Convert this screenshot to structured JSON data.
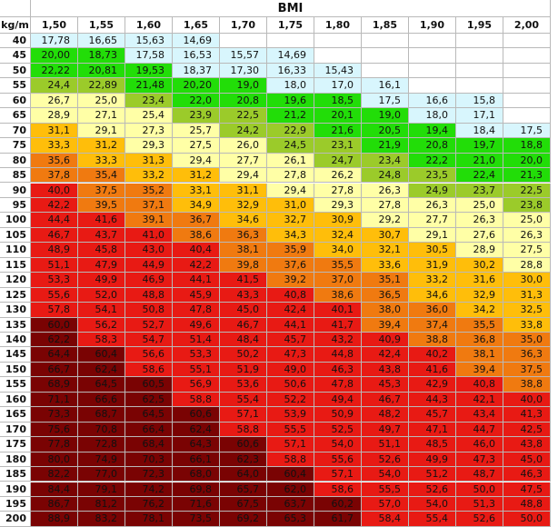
{
  "chart_data": {
    "type": "table",
    "title": "BMI",
    "corner_label": "kg/m",
    "heights": [
      "1,50",
      "1,55",
      "1,60",
      "1,65",
      "1,70",
      "1,75",
      "1,80",
      "1,85",
      "1,90",
      "1,95",
      "2,00"
    ],
    "weights": [
      "40",
      "45",
      "50",
      "55",
      "60",
      "65",
      "70",
      "75",
      "80",
      "85",
      "90",
      "95",
      "100",
      "105",
      "110",
      "115",
      "120",
      "125",
      "130",
      "135",
      "140",
      "145",
      "150",
      "155",
      "160",
      "165",
      "170",
      "175",
      "180",
      "185",
      "190",
      "195",
      "200"
    ],
    "rows": [
      [
        "17,78",
        "16,65",
        "15,63",
        "14,69",
        "",
        "",
        "",
        "",
        "",
        "",
        ""
      ],
      [
        "20,00",
        "18,73",
        "17,58",
        "16,53",
        "15,57",
        "14,69",
        "",
        "",
        "",
        "",
        ""
      ],
      [
        "22,22",
        "20,81",
        "19,53",
        "18,37",
        "17,30",
        "16,33",
        "15,43",
        "",
        "",
        "",
        ""
      ],
      [
        "24,4",
        "22,89",
        "21,48",
        "20,20",
        "19,0",
        "18,0",
        "17,0",
        "16,1",
        "",
        "",
        ""
      ],
      [
        "26,7",
        "25,0",
        "23,4",
        "22,0",
        "20,8",
        "19,6",
        "18,5",
        "17,5",
        "16,6",
        "15,8",
        ""
      ],
      [
        "28,9",
        "27,1",
        "25,4",
        "23,9",
        "22,5",
        "21,2",
        "20,1",
        "19,0",
        "18,0",
        "17,1",
        ""
      ],
      [
        "31,1",
        "29,1",
        "27,3",
        "25,7",
        "24,2",
        "22,9",
        "21,6",
        "20,5",
        "19,4",
        "18,4",
        "17,5"
      ],
      [
        "33,3",
        "31,2",
        "29,3",
        "27,5",
        "26,0",
        "24,5",
        "23,1",
        "21,9",
        "20,8",
        "19,7",
        "18,8"
      ],
      [
        "35,6",
        "33,3",
        "31,3",
        "29,4",
        "27,7",
        "26,1",
        "24,7",
        "23,4",
        "22,2",
        "21,0",
        "20,0"
      ],
      [
        "37,8",
        "35,4",
        "33,2",
        "31,2",
        "29,4",
        "27,8",
        "26,2",
        "24,8",
        "23,5",
        "22,4",
        "21,3"
      ],
      [
        "40,0",
        "37,5",
        "35,2",
        "33,1",
        "31,1",
        "29,4",
        "27,8",
        "26,3",
        "24,9",
        "23,7",
        "22,5"
      ],
      [
        "42,2",
        "39,5",
        "37,1",
        "34,9",
        "32,9",
        "31,0",
        "29,3",
        "27,8",
        "26,3",
        "25,0",
        "23,8"
      ],
      [
        "44,4",
        "41,6",
        "39,1",
        "36,7",
        "34,6",
        "32,7",
        "30,9",
        "29,2",
        "27,7",
        "26,3",
        "25,0"
      ],
      [
        "46,7",
        "43,7",
        "41,0",
        "38,6",
        "36,3",
        "34,3",
        "32,4",
        "30,7",
        "29,1",
        "27,6",
        "26,3"
      ],
      [
        "48,9",
        "45,8",
        "43,0",
        "40,4",
        "38,1",
        "35,9",
        "34,0",
        "32,1",
        "30,5",
        "28,9",
        "27,5"
      ],
      [
        "51,1",
        "47,9",
        "44,9",
        "42,2",
        "39,8",
        "37,6",
        "35,5",
        "33,6",
        "31,9",
        "30,2",
        "28,8"
      ],
      [
        "53,3",
        "49,9",
        "46,9",
        "44,1",
        "41,5",
        "39,2",
        "37,0",
        "35,1",
        "33,2",
        "31,6",
        "30,0"
      ],
      [
        "55,6",
        "52,0",
        "48,8",
        "45,9",
        "43,3",
        "40,8",
        "38,6",
        "36,5",
        "34,6",
        "32,9",
        "31,3"
      ],
      [
        "57,8",
        "54,1",
        "50,8",
        "47,8",
        "45,0",
        "42,4",
        "40,1",
        "38,0",
        "36,0",
        "34,2",
        "32,5"
      ],
      [
        "60,0",
        "56,2",
        "52,7",
        "49,6",
        "46,7",
        "44,1",
        "41,7",
        "39,4",
        "37,4",
        "35,5",
        "33,8"
      ],
      [
        "62,2",
        "58,3",
        "54,7",
        "51,4",
        "48,4",
        "45,7",
        "43,2",
        "40,9",
        "38,8",
        "36,8",
        "35,0"
      ],
      [
        "64,4",
        "60,4",
        "56,6",
        "53,3",
        "50,2",
        "47,3",
        "44,8",
        "42,4",
        "40,2",
        "38,1",
        "36,3"
      ],
      [
        "66,7",
        "62,4",
        "58,6",
        "55,1",
        "51,9",
        "49,0",
        "46,3",
        "43,8",
        "41,6",
        "39,4",
        "37,5"
      ],
      [
        "68,9",
        "64,5",
        "60,5",
        "56,9",
        "53,6",
        "50,6",
        "47,8",
        "45,3",
        "42,9",
        "40,8",
        "38,8"
      ],
      [
        "71,1",
        "66,6",
        "62,5",
        "58,8",
        "55,4",
        "52,2",
        "49,4",
        "46,7",
        "44,3",
        "42,1",
        "40,0"
      ],
      [
        "73,3",
        "68,7",
        "64,5",
        "60,6",
        "57,1",
        "53,9",
        "50,9",
        "48,2",
        "45,7",
        "43,4",
        "41,3"
      ],
      [
        "75,6",
        "70,8",
        "66,4",
        "62,4",
        "58,8",
        "55,5",
        "52,5",
        "49,7",
        "47,1",
        "44,7",
        "42,5"
      ],
      [
        "77,8",
        "72,8",
        "68,4",
        "64,3",
        "60,6",
        "57,1",
        "54,0",
        "51,1",
        "48,5",
        "46,0",
        "43,8"
      ],
      [
        "80,0",
        "74,9",
        "70,3",
        "66,1",
        "62,3",
        "58,8",
        "55,6",
        "52,6",
        "49,9",
        "47,3",
        "45,0"
      ],
      [
        "82,2",
        "77,0",
        "72,3",
        "68,0",
        "64,0",
        "60,4",
        "57,1",
        "54,0",
        "51,2",
        "48,7",
        "46,3"
      ],
      [
        "84,4",
        "79,1",
        "74,2",
        "69,8",
        "65,7",
        "62,0",
        "58,6",
        "55,5",
        "52,6",
        "50,0",
        "47,5"
      ],
      [
        "86,7",
        "81,2",
        "76,2",
        "71,6",
        "67,5",
        "63,7",
        "60,2",
        "57,0",
        "54,0",
        "51,3",
        "48,8"
      ],
      [
        "88,9",
        "83,2",
        "78,1",
        "73,5",
        "69,2",
        "65,3",
        "61,7",
        "58,4",
        "55,4",
        "52,6",
        "50,0"
      ]
    ],
    "band_colors": {
      "underweight": "#d8f6fd",
      "normal": "#22dd08",
      "normal_upper": "#9bcb2a",
      "overweight": "#ffffa6",
      "obese_1": "#ffbe0a",
      "obese_2": "#f07a10",
      "obese_3": "#e81a14",
      "obese_4": "#7a0303"
    }
  }
}
